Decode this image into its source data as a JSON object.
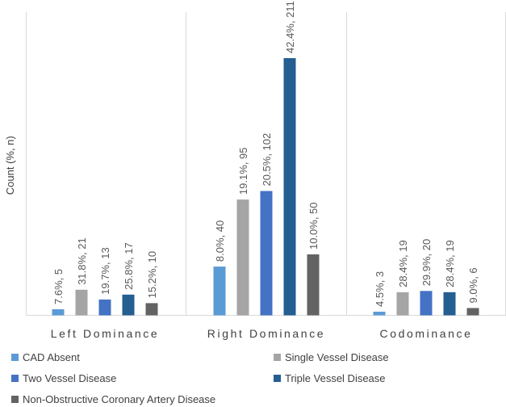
{
  "chart_data": {
    "type": "bar",
    "ylabel": "Count (%, n)",
    "categories": [
      "Left Dominance",
      "Right Dominance",
      "Codominance"
    ],
    "ylim": [
      0,
      225
    ],
    "grid": false,
    "legend_position": "bottom",
    "series": [
      {
        "name": "CAD Absent",
        "color": "#5b9bd5",
        "values": [
          5,
          40,
          3
        ],
        "labels": [
          "7.6%, 5",
          "8.0%, 40",
          "4.5%, 3"
        ]
      },
      {
        "name": "Single Vessel Disease",
        "color": "#a5a5a5",
        "values": [
          21,
          95,
          19
        ],
        "labels": [
          "31.8%, 21",
          "19.1%, 95",
          "28.4%, 19"
        ]
      },
      {
        "name": "Two Vessel Disease",
        "color": "#4472c4",
        "values": [
          13,
          102,
          20
        ],
        "labels": [
          "19.7%, 13",
          "20.5%, 102",
          "29.9%, 20"
        ]
      },
      {
        "name": "Triple Vessel Disease",
        "color": "#255e91",
        "values": [
          17,
          211,
          19
        ],
        "labels": [
          "25.8%, 17",
          "42.4%, 211",
          "28.4%, 19"
        ]
      },
      {
        "name": "Non-Obstructive Coronary Artery Disease",
        "color": "#636363",
        "values": [
          10,
          50,
          6
        ],
        "labels": [
          "15.2%, 10",
          "10.0%, 50",
          "9.0%, 6"
        ]
      }
    ]
  }
}
